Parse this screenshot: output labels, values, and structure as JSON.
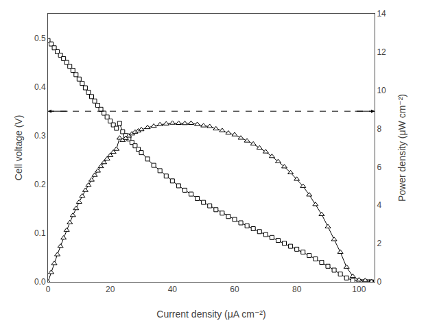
{
  "chart_data": {
    "type": "line",
    "xlabel": "Current density (μA cm⁻²)",
    "ylabel": "Cell voltage (V)",
    "y2label": "Power density (μW cm⁻²)",
    "xlim": [
      0,
      105
    ],
    "ylim": [
      0,
      0.55
    ],
    "y2lim": [
      0,
      14
    ],
    "xticks": [
      0,
      20,
      40,
      60,
      80,
      100
    ],
    "yticks": [
      {
        "value": 0.0,
        "label": "0.0"
      },
      0.1,
      0.2,
      0.3,
      0.4,
      0.5
    ],
    "y2ticks": [
      0,
      2,
      4,
      6,
      8,
      10,
      12,
      14
    ],
    "grid": false,
    "series": [
      {
        "axis": "y",
        "color": "#000000",
        "marker": "square",
        "line_style": "solid",
        "x": [
          0,
          1,
          2,
          3,
          4,
          5,
          6,
          7,
          8,
          9,
          10,
          11,
          12,
          13,
          14,
          15,
          16,
          17,
          18,
          19,
          20,
          21,
          22,
          23,
          24,
          25,
          26,
          27,
          28,
          29,
          30,
          32,
          34,
          36,
          38,
          40,
          42,
          44,
          46,
          48,
          50,
          52,
          54,
          56,
          58,
          60,
          62,
          64,
          66,
          68,
          70,
          72,
          74,
          76,
          78,
          80,
          82,
          84,
          86,
          88,
          90,
          92,
          94,
          96,
          98,
          100,
          101,
          102,
          103,
          104
        ],
        "values": [
          0.495,
          0.488,
          0.48,
          0.472,
          0.465,
          0.458,
          0.45,
          0.442,
          0.434,
          0.425,
          0.416,
          0.407,
          0.398,
          0.389,
          0.38,
          0.371,
          0.362,
          0.354,
          0.346,
          0.338,
          0.33,
          0.322,
          0.315,
          0.325,
          0.308,
          0.3,
          0.293,
          0.286,
          0.279,
          0.272,
          0.265,
          0.252,
          0.239,
          0.228,
          0.217,
          0.207,
          0.197,
          0.188,
          0.18,
          0.171,
          0.163,
          0.156,
          0.148,
          0.141,
          0.134,
          0.128,
          0.121,
          0.115,
          0.109,
          0.103,
          0.097,
          0.091,
          0.085,
          0.079,
          0.073,
          0.067,
          0.061,
          0.054,
          0.047,
          0.04,
          0.032,
          0.024,
          0.016,
          0.008,
          0.003,
          0.001,
          0.0,
          0.0,
          0.0,
          0.0
        ]
      },
      {
        "axis": "y2",
        "color": "#000000",
        "marker": "triangle-up",
        "line_style": "solid",
        "x": [
          0,
          1,
          2,
          3,
          4,
          5,
          6,
          7,
          8,
          9,
          10,
          11,
          12,
          13,
          14,
          15,
          16,
          17,
          18,
          19,
          20,
          21,
          22,
          23,
          24,
          25,
          26,
          27,
          28,
          29,
          30,
          32,
          34,
          36,
          38,
          40,
          42,
          44,
          46,
          48,
          50,
          52,
          54,
          56,
          58,
          60,
          62,
          64,
          66,
          68,
          70,
          72,
          74,
          76,
          78,
          80,
          82,
          84,
          86,
          88,
          90,
          92,
          94,
          96,
          98,
          100,
          102,
          104
        ],
        "values": [
          0,
          0.49,
          0.96,
          1.42,
          1.86,
          2.29,
          2.7,
          3.09,
          3.47,
          3.83,
          4.16,
          4.48,
          4.78,
          5.05,
          5.32,
          5.57,
          5.79,
          6.02,
          6.23,
          6.42,
          6.6,
          6.77,
          6.93,
          7.51,
          7.39,
          7.5,
          7.62,
          7.73,
          7.82,
          7.88,
          7.95,
          8.06,
          8.13,
          8.21,
          8.25,
          8.29,
          8.28,
          8.27,
          8.28,
          8.22,
          8.15,
          8.11,
          7.99,
          7.9,
          7.77,
          7.68,
          7.51,
          7.36,
          7.2,
          6.99,
          6.79,
          6.55,
          6.28,
          6.01,
          5.7,
          5.36,
          4.99,
          4.54,
          4.04,
          3.52,
          2.88,
          2.21,
          1.55,
          0.77,
          0.29,
          0.1,
          0.07,
          0.0
        ]
      }
    ],
    "reference_line": {
      "y": 0.35,
      "line_style": "dashed"
    }
  }
}
